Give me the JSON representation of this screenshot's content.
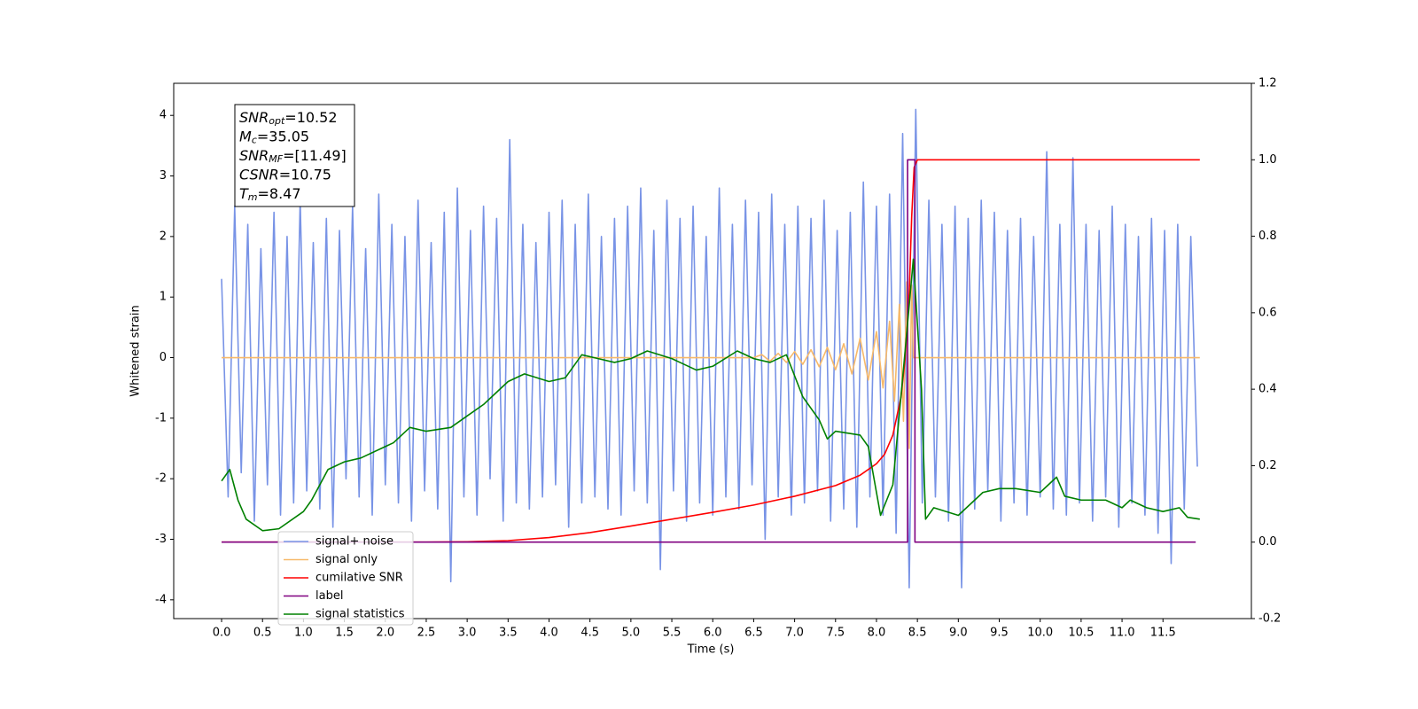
{
  "chart_data": {
    "type": "line",
    "xlabel": "Time (s)",
    "ylabel": "Whitened strain",
    "xlim": [
      -0.585,
      12.58
    ],
    "ylim": [
      -4.31,
      4.53
    ],
    "y2lim": [
      -0.2,
      1.2
    ],
    "xticks": [
      {
        "value": 0,
        "label": "0.0"
      },
      {
        "value": 0.5,
        "label": "0.5"
      },
      {
        "value": 1,
        "label": "1.0"
      },
      {
        "value": 1.5,
        "label": "1.5"
      },
      {
        "value": 2,
        "label": "2.0"
      },
      {
        "value": 2.5,
        "label": "2.5"
      },
      {
        "value": 3,
        "label": "3.0"
      },
      {
        "value": 3.5,
        "label": "3.5"
      },
      {
        "value": 4,
        "label": "4.0"
      },
      {
        "value": 4.5,
        "label": "4.5"
      },
      {
        "value": 5,
        "label": "5.0"
      },
      {
        "value": 5.5,
        "label": "5.5"
      },
      {
        "value": 6,
        "label": "6.0"
      },
      {
        "value": 6.5,
        "label": "6.5"
      },
      {
        "value": 7,
        "label": "7.0"
      },
      {
        "value": 7.5,
        "label": "7.5"
      },
      {
        "value": 8,
        "label": "8.0"
      },
      {
        "value": 8.5,
        "label": "8.5"
      },
      {
        "value": 9,
        "label": "9.0"
      },
      {
        "value": 9.5,
        "label": "9.5"
      },
      {
        "value": 10,
        "label": "10.0"
      },
      {
        "value": 10.5,
        "label": "10.5"
      },
      {
        "value": 11,
        "label": "11.0"
      },
      {
        "value": 11.5,
        "label": "11.5"
      }
    ],
    "yticks": [
      -4,
      -3,
      -2,
      -1,
      0,
      1,
      2,
      3,
      4
    ],
    "y2ticks": [
      -0.2,
      {
        "value": 0,
        "label": "0.0"
      },
      0.2,
      0.4,
      0.6,
      0.8,
      {
        "value": 1,
        "label": "1.0"
      },
      1.2
    ],
    "legend": "lower left",
    "annotation": [
      {
        "name": "SNR",
        "sub": "opt",
        "text": "=10.52"
      },
      {
        "name": "M",
        "sub": "c",
        "text": "=35.05"
      },
      {
        "name": "SNR",
        "sub": "MF",
        "text": "=[11.49]"
      },
      {
        "name": "CSNR",
        "text": "=10.75"
      },
      {
        "name": "T",
        "sub": "m",
        "text": "=8.47"
      }
    ],
    "series": [
      {
        "name": "signal+ noise",
        "color": "#7893e6",
        "x": [
          0,
          0.08,
          0.16,
          0.24,
          0.32,
          0.4,
          0.48,
          0.56,
          0.64,
          0.72,
          0.8,
          0.88,
          0.96,
          1.04,
          1.12,
          1.2,
          1.28,
          1.36,
          1.44,
          1.52,
          1.6,
          1.68,
          1.76,
          1.84,
          1.92,
          2,
          2.08,
          2.16,
          2.24,
          2.32,
          2.4,
          2.48,
          2.56,
          2.64,
          2.72,
          2.8,
          2.88,
          2.96,
          3.04,
          3.12,
          3.2,
          3.28,
          3.36,
          3.44,
          3.52,
          3.6,
          3.68,
          3.76,
          3.84,
          3.92,
          4,
          4.08,
          4.16,
          4.24,
          4.32,
          4.4,
          4.48,
          4.56,
          4.64,
          4.72,
          4.8,
          4.88,
          4.96,
          5.04,
          5.12,
          5.2,
          5.28,
          5.36,
          5.44,
          5.52,
          5.6,
          5.68,
          5.76,
          5.84,
          5.92,
          6,
          6.08,
          6.16,
          6.24,
          6.32,
          6.4,
          6.48,
          6.56,
          6.64,
          6.72,
          6.8,
          6.88,
          6.96,
          7.04,
          7.12,
          7.2,
          7.28,
          7.36,
          7.44,
          7.52,
          7.6,
          7.68,
          7.76,
          7.84,
          7.92,
          8,
          8.08,
          8.16,
          8.24,
          8.32,
          8.4,
          8.48,
          8.56,
          8.64,
          8.72,
          8.8,
          8.88,
          8.96,
          9.04,
          9.12,
          9.2,
          9.28,
          9.36,
          9.44,
          9.52,
          9.6,
          9.68,
          9.76,
          9.84,
          9.92,
          10,
          10.08,
          10.16,
          10.24,
          10.32,
          10.4,
          10.48,
          10.56,
          10.64,
          10.72,
          10.8,
          10.88,
          10.96,
          11.04,
          11.12,
          11.2,
          11.28,
          11.36,
          11.44,
          11.52,
          11.6,
          11.68,
          11.76,
          11.84,
          11.92
        ],
        "values": [
          1.3,
          -2.3,
          2.5,
          -1.9,
          2.2,
          -2.7,
          1.8,
          -2.1,
          2.4,
          -2.6,
          2.0,
          -2.4,
          2.6,
          -2.2,
          1.9,
          -2.5,
          2.3,
          -2.8,
          2.1,
          -2.0,
          2.5,
          -2.3,
          1.8,
          -2.6,
          2.7,
          -2.1,
          2.2,
          -2.4,
          2.0,
          -2.7,
          2.6,
          -2.2,
          1.9,
          -2.5,
          2.4,
          -3.7,
          2.8,
          -2.3,
          2.1,
          -2.6,
          2.5,
          -2.0,
          2.3,
          -2.7,
          3.6,
          -2.4,
          2.2,
          -2.5,
          1.9,
          -2.3,
          2.4,
          -2.1,
          2.6,
          -2.8,
          2.2,
          -2.4,
          2.7,
          -2.3,
          2.0,
          -2.5,
          2.3,
          -2.6,
          2.5,
          -2.2,
          2.8,
          -2.4,
          2.1,
          -3.5,
          2.6,
          -2.2,
          2.3,
          -2.7,
          2.5,
          -2.4,
          2.0,
          -2.6,
          2.8,
          -2.3,
          2.2,
          -2.5,
          2.6,
          -2.1,
          2.4,
          -3.0,
          2.7,
          -2.3,
          2.2,
          -2.6,
          2.5,
          -2.4,
          2.3,
          -2.2,
          2.6,
          -2.7,
          2.1,
          -2.5,
          2.4,
          -2.8,
          2.9,
          -2.3,
          2.5,
          -2.6,
          2.7,
          -2.9,
          3.7,
          -3.8,
          4.1,
          -2.4,
          2.6,
          -2.3,
          2.2,
          -2.7,
          2.5,
          -3.8,
          2.3,
          -2.5,
          2.6,
          -2.2,
          2.4,
          -2.7,
          2.1,
          -2.4,
          2.3,
          -2.6,
          2.0,
          -2.3,
          3.4,
          -2.5,
          2.2,
          -2.6,
          3.3,
          -2.4,
          2.2,
          -2.7,
          2.1,
          -2.3,
          2.5,
          -2.8,
          2.2,
          -2.4,
          2.0,
          -2.6,
          2.3,
          -2.9,
          2.1,
          -3.4,
          2.2,
          -2.5,
          2.0,
          -1.8
        ]
      },
      {
        "name": "signal only",
        "color": "#f7b96a",
        "x": [
          0,
          6.5,
          6.6,
          6.7,
          6.8,
          6.9,
          7.0,
          7.1,
          7.2,
          7.3,
          7.4,
          7.5,
          7.6,
          7.7,
          7.8,
          7.9,
          8.0,
          8.08,
          8.16,
          8.22,
          8.28,
          8.33,
          8.37,
          8.4,
          8.43,
          8.45,
          11.95
        ],
        "values": [
          0,
          0,
          0.05,
          -0.06,
          0.07,
          -0.08,
          0.1,
          -0.11,
          0.13,
          -0.15,
          0.17,
          -0.2,
          0.23,
          -0.27,
          0.32,
          -0.37,
          0.43,
          -0.5,
          0.6,
          -0.72,
          0.88,
          -1.05,
          1.25,
          -1.5,
          1.2,
          0,
          0
        ]
      },
      {
        "name": "cumilative SNR",
        "color": "#ff0000",
        "axis": "y2",
        "x": [
          0,
          2.5,
          3.0,
          3.5,
          4.0,
          4.5,
          5.0,
          5.5,
          6.0,
          6.5,
          7.0,
          7.5,
          7.8,
          8.0,
          8.1,
          8.2,
          8.3,
          8.35,
          8.4,
          8.43,
          8.46,
          8.5,
          11.95
        ],
        "values": [
          0,
          0,
          0.001,
          0.004,
          0.012,
          0.025,
          0.042,
          0.06,
          0.078,
          0.097,
          0.12,
          0.148,
          0.175,
          0.205,
          0.23,
          0.28,
          0.38,
          0.48,
          0.65,
          0.85,
          0.98,
          1,
          1
        ]
      },
      {
        "name": "label",
        "color": "#800080",
        "axis": "y2",
        "x": [
          0,
          8.38,
          8.38,
          8.47,
          8.47,
          11.9
        ],
        "values": [
          0,
          0,
          1,
          1,
          0,
          0
        ]
      },
      {
        "name": "signal statistics",
        "color": "#008000",
        "axis": "y2",
        "x": [
          0,
          0.1,
          0.2,
          0.3,
          0.5,
          0.7,
          1.0,
          1.1,
          1.3,
          1.5,
          1.7,
          2.0,
          2.1,
          2.3,
          2.5,
          2.8,
          3.0,
          3.2,
          3.3,
          3.5,
          3.7,
          4.0,
          4.2,
          4.4,
          4.6,
          4.8,
          5.0,
          5.2,
          5.5,
          5.6,
          5.8,
          6.0,
          6.3,
          6.5,
          6.7,
          6.9,
          7.1,
          7.3,
          7.4,
          7.5,
          7.8,
          7.9,
          8.0,
          8.05,
          8.2,
          8.35,
          8.45,
          8.55,
          8.6,
          8.7,
          9.0,
          9.3,
          9.5,
          9.7,
          10.0,
          10.2,
          10.3,
          10.5,
          10.8,
          11.0,
          11.1,
          11.3,
          11.5,
          11.7,
          11.8,
          11.95
        ],
        "values": [
          0.16,
          0.19,
          0.11,
          0.06,
          0.03,
          0.035,
          0.08,
          0.11,
          0.19,
          0.21,
          0.22,
          0.25,
          0.26,
          0.3,
          0.29,
          0.3,
          0.33,
          0.36,
          0.38,
          0.42,
          0.44,
          0.42,
          0.43,
          0.49,
          0.48,
          0.47,
          0.48,
          0.5,
          0.48,
          0.47,
          0.45,
          0.46,
          0.5,
          0.48,
          0.47,
          0.49,
          0.38,
          0.32,
          0.27,
          0.29,
          0.28,
          0.25,
          0.13,
          0.07,
          0.15,
          0.5,
          0.74,
          0.4,
          0.06,
          0.09,
          0.07,
          0.13,
          0.14,
          0.14,
          0.13,
          0.17,
          0.12,
          0.11,
          0.11,
          0.09,
          0.11,
          0.09,
          0.08,
          0.09,
          0.065,
          0.06
        ]
      }
    ]
  }
}
